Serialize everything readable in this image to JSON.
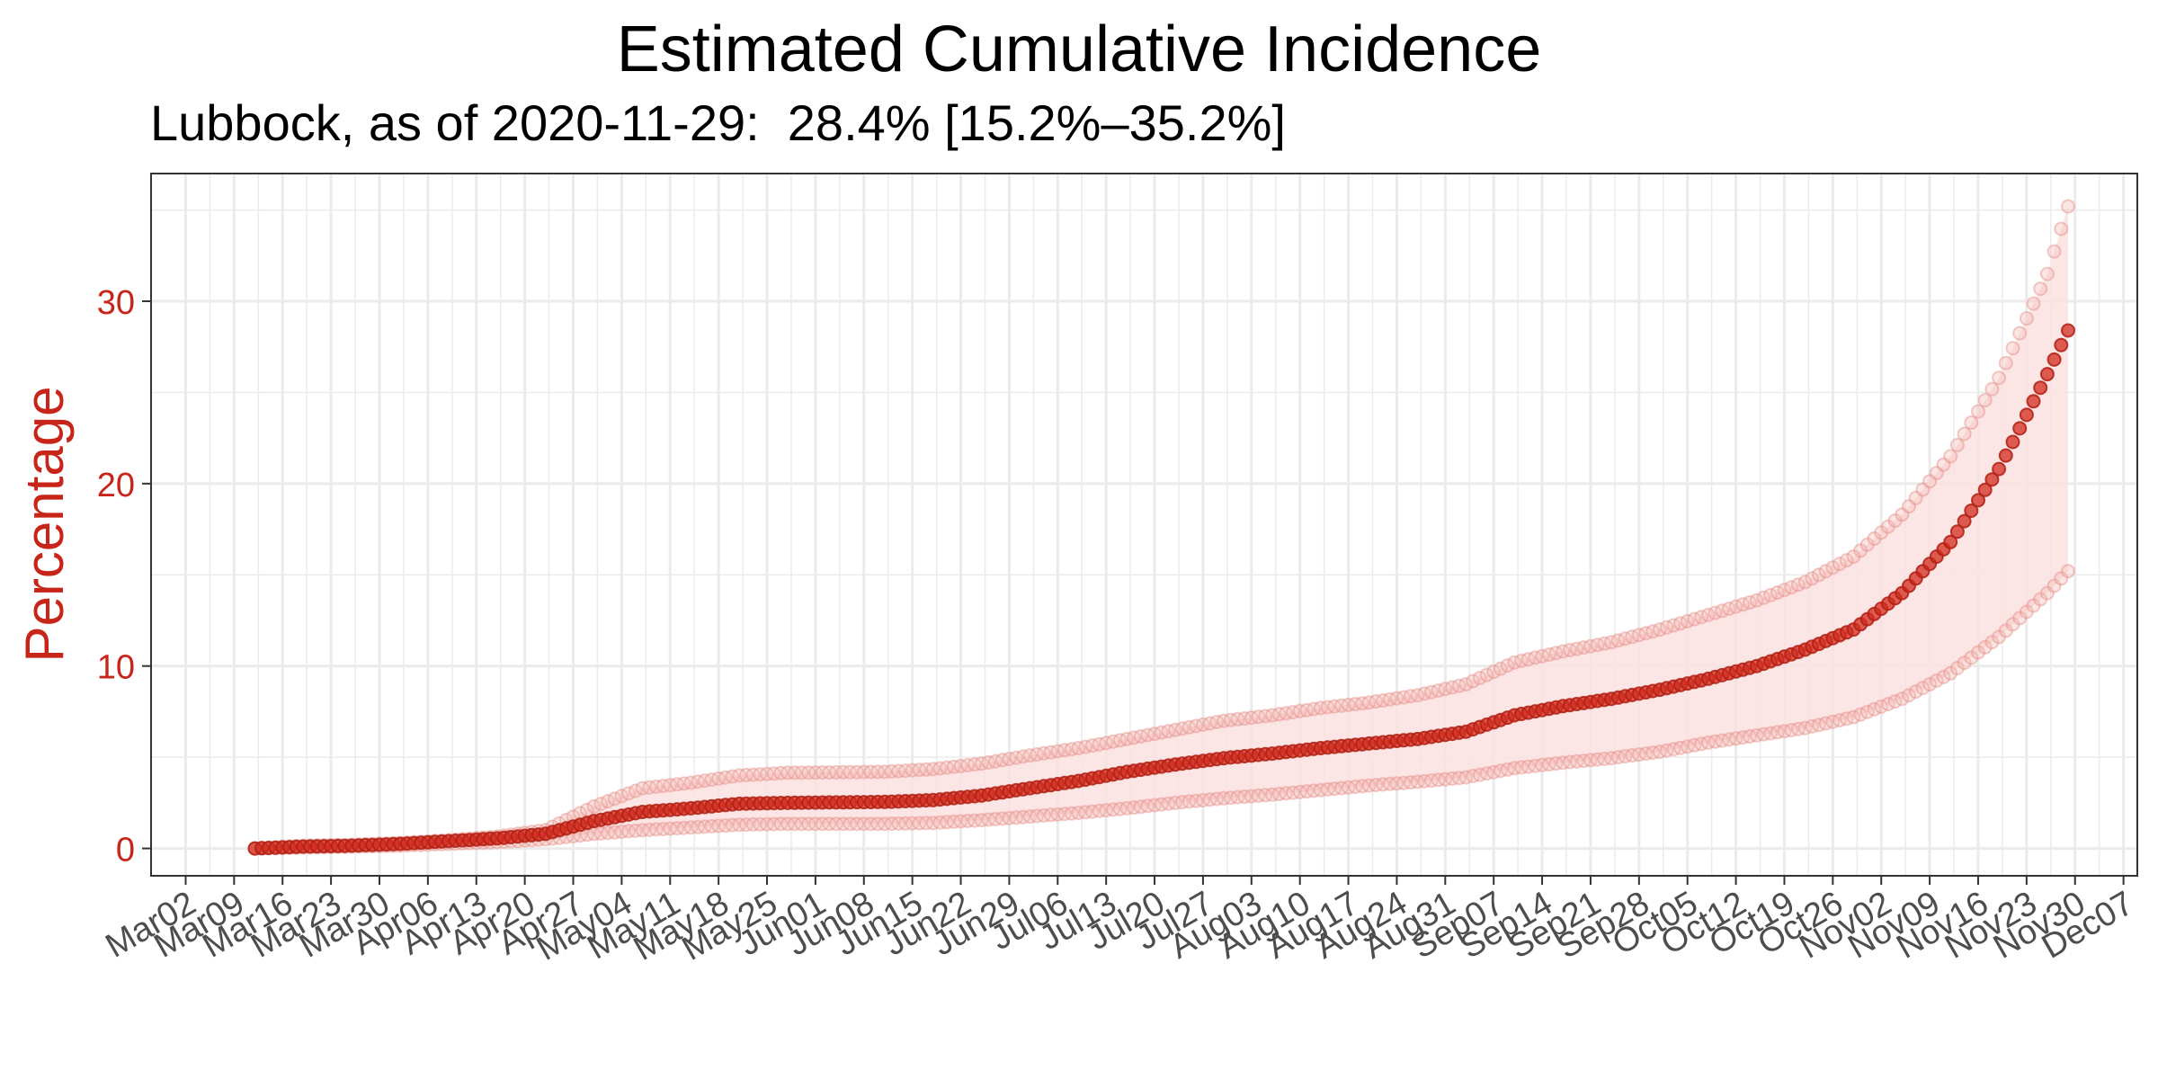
{
  "chart_data": {
    "type": "scatter",
    "title": "Estimated Cumulative Incidence",
    "subtitle": "Lubbock, as of 2020-11-29:  28.4% [15.2%–35.2%]",
    "xlabel": "",
    "ylabel": "Percentage",
    "x_range": [
      "2020-02-26",
      "2020-12-09"
    ],
    "ylim": [
      -1.5,
      37
    ],
    "y_ticks": [
      0,
      10,
      20,
      30
    ],
    "x_ticks": [
      "Mar02",
      "Mar09",
      "Mar16",
      "Mar23",
      "Mar30",
      "Apr06",
      "Apr13",
      "Apr20",
      "Apr27",
      "May04",
      "May11",
      "May18",
      "May25",
      "Jun01",
      "Jun08",
      "Jun15",
      "Jun22",
      "Jun29",
      "Jul06",
      "Jul13",
      "Jul20",
      "Jul27",
      "Aug03",
      "Aug10",
      "Aug17",
      "Aug24",
      "Aug31",
      "Sep07",
      "Sep14",
      "Sep21",
      "Sep28",
      "Oct05",
      "Oct12",
      "Oct19",
      "Oct26",
      "Nov02",
      "Nov09",
      "Nov16",
      "Nov23",
      "Nov30",
      "Dec07"
    ],
    "x_tick_dates": [
      "2020-03-02",
      "2020-03-09",
      "2020-03-16",
      "2020-03-23",
      "2020-03-30",
      "2020-04-06",
      "2020-04-13",
      "2020-04-20",
      "2020-04-27",
      "2020-05-04",
      "2020-05-11",
      "2020-05-18",
      "2020-05-25",
      "2020-06-01",
      "2020-06-08",
      "2020-06-15",
      "2020-06-22",
      "2020-06-29",
      "2020-07-06",
      "2020-07-13",
      "2020-07-20",
      "2020-07-27",
      "2020-08-03",
      "2020-08-10",
      "2020-08-17",
      "2020-08-24",
      "2020-08-31",
      "2020-09-07",
      "2020-09-14",
      "2020-09-21",
      "2020-09-28",
      "2020-10-05",
      "2020-10-12",
      "2020-10-19",
      "2020-10-26",
      "2020-11-02",
      "2020-11-09",
      "2020-11-16",
      "2020-11-23",
      "2020-11-30",
      "2020-12-07"
    ],
    "grid": true,
    "legend": "none",
    "series_start": "2020-03-12",
    "series_end": "2020-11-29",
    "anchors": [
      {
        "x": "2020-03-12",
        "y": 0.0,
        "lower": 0.0,
        "upper": 0.0
      },
      {
        "x": "2020-03-19",
        "y": 0.1,
        "lower": 0.05,
        "upper": 0.15
      },
      {
        "x": "2020-03-26",
        "y": 0.15,
        "lower": 0.1,
        "upper": 0.2
      },
      {
        "x": "2020-04-02",
        "y": 0.25,
        "lower": 0.15,
        "upper": 0.3
      },
      {
        "x": "2020-04-09",
        "y": 0.4,
        "lower": 0.25,
        "upper": 0.45
      },
      {
        "x": "2020-04-16",
        "y": 0.55,
        "lower": 0.35,
        "upper": 0.65
      },
      {
        "x": "2020-04-23",
        "y": 0.8,
        "lower": 0.5,
        "upper": 1.0
      },
      {
        "x": "2020-04-30",
        "y": 1.5,
        "lower": 0.8,
        "upper": 2.3
      },
      {
        "x": "2020-05-07",
        "y": 2.0,
        "lower": 1.0,
        "upper": 3.3
      },
      {
        "x": "2020-05-14",
        "y": 2.2,
        "lower": 1.15,
        "upper": 3.6
      },
      {
        "x": "2020-05-21",
        "y": 2.45,
        "lower": 1.3,
        "upper": 4.0
      },
      {
        "x": "2020-05-28",
        "y": 2.5,
        "lower": 1.35,
        "upper": 4.15
      },
      {
        "x": "2020-06-11",
        "y": 2.55,
        "lower": 1.35,
        "upper": 4.2
      },
      {
        "x": "2020-06-18",
        "y": 2.65,
        "lower": 1.4,
        "upper": 4.35
      },
      {
        "x": "2020-06-25",
        "y": 2.9,
        "lower": 1.55,
        "upper": 4.65
      },
      {
        "x": "2020-07-02",
        "y": 3.3,
        "lower": 1.75,
        "upper": 5.1
      },
      {
        "x": "2020-07-09",
        "y": 3.7,
        "lower": 1.95,
        "upper": 5.5
      },
      {
        "x": "2020-07-16",
        "y": 4.2,
        "lower": 2.2,
        "upper": 6.0
      },
      {
        "x": "2020-07-23",
        "y": 4.6,
        "lower": 2.5,
        "upper": 6.5
      },
      {
        "x": "2020-07-30",
        "y": 4.95,
        "lower": 2.75,
        "upper": 7.0
      },
      {
        "x": "2020-08-06",
        "y": 5.2,
        "lower": 2.95,
        "upper": 7.3
      },
      {
        "x": "2020-08-13",
        "y": 5.5,
        "lower": 3.2,
        "upper": 7.7
      },
      {
        "x": "2020-08-20",
        "y": 5.75,
        "lower": 3.45,
        "upper": 8.0
      },
      {
        "x": "2020-08-27",
        "y": 6.0,
        "lower": 3.65,
        "upper": 8.4
      },
      {
        "x": "2020-09-03",
        "y": 6.4,
        "lower": 3.9,
        "upper": 9.0
      },
      {
        "x": "2020-09-10",
        "y": 7.3,
        "lower": 4.4,
        "upper": 10.2
      },
      {
        "x": "2020-09-17",
        "y": 7.8,
        "lower": 4.7,
        "upper": 10.8
      },
      {
        "x": "2020-09-24",
        "y": 8.2,
        "lower": 4.95,
        "upper": 11.3
      },
      {
        "x": "2020-10-01",
        "y": 8.7,
        "lower": 5.3,
        "upper": 12.0
      },
      {
        "x": "2020-10-08",
        "y": 9.3,
        "lower": 5.8,
        "upper": 12.8
      },
      {
        "x": "2020-10-15",
        "y": 10.0,
        "lower": 6.2,
        "upper": 13.6
      },
      {
        "x": "2020-10-22",
        "y": 10.9,
        "lower": 6.6,
        "upper": 14.6
      },
      {
        "x": "2020-10-29",
        "y": 12.0,
        "lower": 7.2,
        "upper": 16.0
      },
      {
        "x": "2020-11-05",
        "y": 14.0,
        "lower": 8.2,
        "upper": 18.3
      },
      {
        "x": "2020-11-12",
        "y": 16.8,
        "lower": 9.6,
        "upper": 21.5
      },
      {
        "x": "2020-11-19",
        "y": 20.8,
        "lower": 11.6,
        "upper": 25.8
      },
      {
        "x": "2020-11-26",
        "y": 26.0,
        "lower": 14.0,
        "upper": 31.5
      },
      {
        "x": "2020-11-29",
        "y": 28.4,
        "lower": 15.2,
        "upper": 35.2
      }
    ]
  },
  "colors": {
    "accent": "#d22b1d",
    "band": "#fbe1e1",
    "grid": "#ebebeb",
    "axis_text": "#4d4d4d",
    "y_text": "#c8251a"
  }
}
